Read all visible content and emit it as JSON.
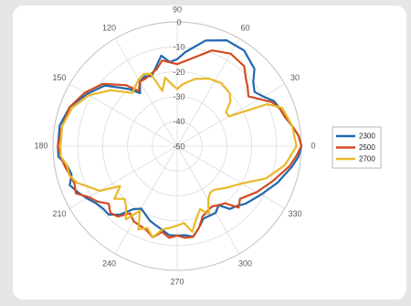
{
  "chart_data": {
    "type": "polar_line",
    "title": "",
    "r_ticks": [
      -50,
      -40,
      -30,
      -20,
      -10,
      0
    ],
    "r_range": [
      -50,
      0
    ],
    "angle_ticks": [
      0,
      30,
      60,
      90,
      120,
      150,
      180,
      210,
      240,
      270,
      300,
      330
    ],
    "grid": true,
    "legend_position": "right",
    "series": [
      {
        "name": "2300",
        "color": "#1f67b0",
        "points": [
          [
            0,
            0
          ],
          [
            5,
            -1
          ],
          [
            10,
            -3
          ],
          [
            15,
            -5
          ],
          [
            20,
            -6
          ],
          [
            25,
            -7
          ],
          [
            30,
            -10
          ],
          [
            35,
            -12
          ],
          [
            40,
            -10
          ],
          [
            45,
            -6
          ],
          [
            55,
            -3
          ],
          [
            65,
            -3
          ],
          [
            75,
            -6
          ],
          [
            85,
            -12
          ],
          [
            90,
            -15
          ],
          [
            95,
            -16
          ],
          [
            100,
            -13
          ],
          [
            105,
            -17
          ],
          [
            110,
            -20
          ],
          [
            115,
            -19
          ],
          [
            120,
            -20
          ],
          [
            125,
            -24
          ],
          [
            130,
            -20
          ],
          [
            140,
            -12
          ],
          [
            150,
            -8
          ],
          [
            160,
            -4
          ],
          [
            170,
            -2
          ],
          [
            180,
            -2
          ],
          [
            185,
            -2
          ],
          [
            190,
            -5
          ],
          [
            195,
            -6
          ],
          [
            200,
            -4
          ],
          [
            205,
            -6
          ],
          [
            210,
            -8
          ],
          [
            215,
            -10
          ],
          [
            220,
            -11
          ],
          [
            225,
            -11
          ],
          [
            230,
            -14
          ],
          [
            235,
            -19
          ],
          [
            240,
            -21
          ],
          [
            250,
            -18
          ],
          [
            255,
            -17
          ],
          [
            265,
            -14
          ],
          [
            270,
            -14
          ],
          [
            275,
            -14
          ],
          [
            280,
            -13
          ],
          [
            285,
            -16
          ],
          [
            290,
            -19
          ],
          [
            300,
            -19
          ],
          [
            305,
            -21
          ],
          [
            310,
            -17
          ],
          [
            315,
            -16
          ],
          [
            320,
            -14
          ],
          [
            330,
            -11
          ],
          [
            340,
            -7
          ],
          [
            350,
            -3
          ],
          [
            355,
            -1
          ],
          [
            360,
            0
          ]
        ]
      },
      {
        "name": "2500",
        "color": "#d24b21",
        "points": [
          [
            0,
            0
          ],
          [
            5,
            -1
          ],
          [
            10,
            -3
          ],
          [
            15,
            -5
          ],
          [
            20,
            -6
          ],
          [
            25,
            -8
          ],
          [
            30,
            -12
          ],
          [
            35,
            -15
          ],
          [
            40,
            -13
          ],
          [
            45,
            -11
          ],
          [
            50,
            -8
          ],
          [
            60,
            -7
          ],
          [
            70,
            -9
          ],
          [
            80,
            -14
          ],
          [
            90,
            -17
          ],
          [
            100,
            -15
          ],
          [
            105,
            -18
          ],
          [
            110,
            -19
          ],
          [
            115,
            -20
          ],
          [
            120,
            -20
          ],
          [
            125,
            -23
          ],
          [
            130,
            -18
          ],
          [
            140,
            -11
          ],
          [
            150,
            -7
          ],
          [
            160,
            -4
          ],
          [
            170,
            -3
          ],
          [
            180,
            -2
          ],
          [
            185,
            -3
          ],
          [
            190,
            -4
          ],
          [
            200,
            -6
          ],
          [
            205,
            -5
          ],
          [
            210,
            -9
          ],
          [
            215,
            -11
          ],
          [
            220,
            -14
          ],
          [
            225,
            -12
          ],
          [
            230,
            -13
          ],
          [
            235,
            -17
          ],
          [
            240,
            -15
          ],
          [
            250,
            -14
          ],
          [
            255,
            -12
          ],
          [
            260,
            -15
          ],
          [
            265,
            -13
          ],
          [
            270,
            -14
          ],
          [
            275,
            -13
          ],
          [
            280,
            -13
          ],
          [
            285,
            -16
          ],
          [
            290,
            -20
          ],
          [
            300,
            -22
          ],
          [
            305,
            -21
          ],
          [
            310,
            -20
          ],
          [
            315,
            -15
          ],
          [
            320,
            -17
          ],
          [
            330,
            -13
          ],
          [
            340,
            -9
          ],
          [
            350,
            -4
          ],
          [
            355,
            -2
          ],
          [
            360,
            0
          ]
        ]
      },
      {
        "name": "2700",
        "color": "#e8b92a",
        "points": [
          [
            0,
            -2
          ],
          [
            10,
            -3
          ],
          [
            20,
            -5
          ],
          [
            25,
            -10
          ],
          [
            30,
            -26
          ],
          [
            35,
            -26
          ],
          [
            40,
            -22
          ],
          [
            45,
            -20
          ],
          [
            55,
            -19
          ],
          [
            65,
            -20
          ],
          [
            75,
            -22
          ],
          [
            85,
            -25
          ],
          [
            90,
            -27
          ],
          [
            95,
            -25
          ],
          [
            100,
            -22
          ],
          [
            105,
            -27
          ],
          [
            110,
            -19
          ],
          [
            115,
            -18
          ],
          [
            120,
            -19
          ],
          [
            130,
            -22
          ],
          [
            140,
            -15
          ],
          [
            150,
            -9
          ],
          [
            160,
            -5
          ],
          [
            170,
            -3
          ],
          [
            180,
            -3
          ],
          [
            185,
            -3
          ],
          [
            190,
            -5
          ],
          [
            195,
            -5
          ],
          [
            200,
            -7
          ],
          [
            205,
            -11
          ],
          [
            210,
            -14
          ],
          [
            215,
            -22
          ],
          [
            220,
            -17
          ],
          [
            225,
            -20
          ],
          [
            230,
            -18
          ],
          [
            235,
            -14
          ],
          [
            240,
            -20
          ],
          [
            245,
            -13
          ],
          [
            250,
            -15
          ],
          [
            255,
            -12
          ],
          [
            260,
            -16
          ],
          [
            265,
            -17
          ],
          [
            270,
            -18
          ],
          [
            275,
            -19
          ],
          [
            280,
            -15
          ],
          [
            285,
            -20
          ],
          [
            290,
            -23
          ],
          [
            295,
            -20
          ],
          [
            300,
            -25
          ],
          [
            305,
            -27
          ],
          [
            310,
            -27
          ],
          [
            320,
            -24
          ],
          [
            330,
            -20
          ],
          [
            340,
            -12
          ],
          [
            350,
            -6
          ],
          [
            360,
            -2
          ]
        ]
      }
    ]
  }
}
